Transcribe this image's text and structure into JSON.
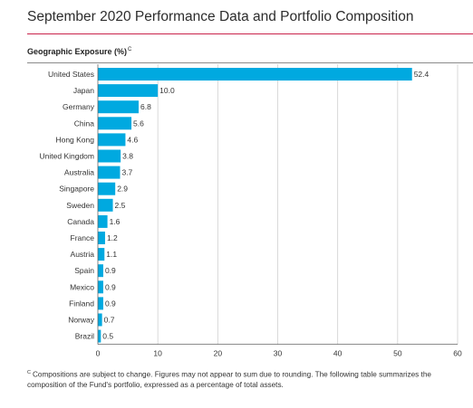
{
  "header": {
    "title": "September 2020 Performance Data and Portfolio Composition"
  },
  "section": {
    "heading": "Geographic Exposure (%)",
    "heading_marker": "C"
  },
  "footnote": {
    "marker": "C",
    "text": "Compositions are subject to change. Figures may not appear to sum due to rounding. The following table summarizes the composition of the Fund's portfolio, expressed as a percentage of total assets."
  },
  "chart_data": {
    "type": "bar",
    "orientation": "horizontal",
    "categories": [
      "United States",
      "Japan",
      "Germany",
      "China",
      "Hong Kong",
      "United Kingdom",
      "Australia",
      "Singapore",
      "Sweden",
      "Canada",
      "France",
      "Austria",
      "Spain",
      "Mexico",
      "Finland",
      "Norway",
      "Brazil"
    ],
    "values": [
      52.4,
      10.0,
      6.8,
      5.6,
      4.6,
      3.8,
      3.7,
      2.9,
      2.5,
      1.6,
      1.2,
      1.1,
      0.9,
      0.9,
      0.9,
      0.7,
      0.5
    ],
    "value_labels": [
      "52.4",
      "10.0",
      "6.8",
      "5.6",
      "4.6",
      "3.8",
      "3.7",
      "2.9",
      "2.5",
      "1.6",
      "1.2",
      "1.1",
      "0.9",
      "0.9",
      "0.9",
      "0.7",
      "0.5"
    ],
    "title": "Geographic Exposure (%)",
    "xlabel": "",
    "ylabel": "",
    "xlim": [
      0,
      60
    ],
    "xticks": [
      0,
      10,
      20,
      30,
      40,
      50,
      60
    ],
    "grid": true,
    "legend": "none",
    "bar_color": "#00a9e0",
    "grid_color": "#d0d0d0"
  }
}
